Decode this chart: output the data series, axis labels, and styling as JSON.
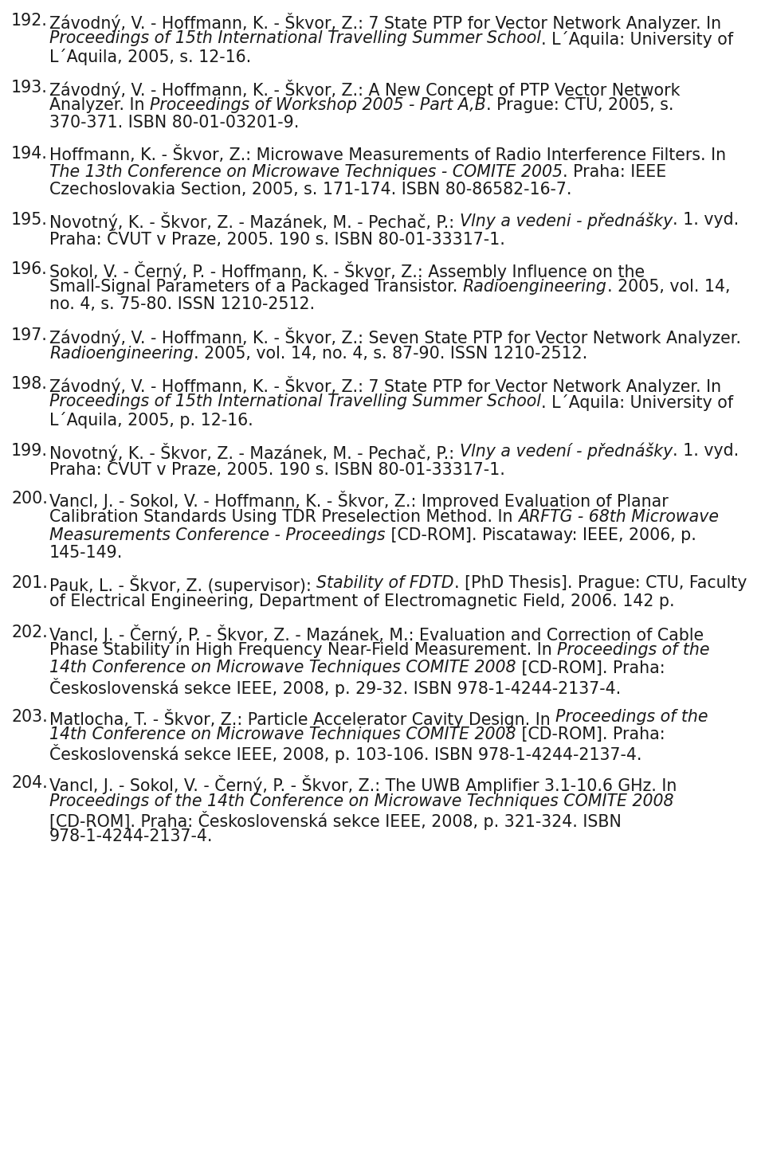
{
  "background_color": "#ffffff",
  "text_color": "#1a1a1a",
  "entries": [
    {
      "number": "192.",
      "segments": [
        {
          "text": "Závodný, V. - Hoffmann, K. - Škvor, Z.: 7 State PTP for Vector Network Analyzer. In ",
          "style": "normal"
        },
        {
          "text": "Proceedings of 15th International Travelling Summer School",
          "style": "italic"
        },
        {
          "text": ". L´Aquila: University of L´Aquila, 2005, s. 12-16.",
          "style": "normal"
        }
      ]
    },
    {
      "number": "193.",
      "segments": [
        {
          "text": "Závodný, V. - Hoffmann, K. - Škvor, Z.: A New Concept of PTP Vector Network Analyzer. In ",
          "style": "normal"
        },
        {
          "text": "Proceedings of Workshop 2005 - Part A,B",
          "style": "italic"
        },
        {
          "text": ". Prague: CTU, 2005, s. 370-371. ISBN 80-01-03201-9.",
          "style": "normal"
        }
      ]
    },
    {
      "number": "194.",
      "segments": [
        {
          "text": "Hoffmann, K. - Škvor, Z.: Microwave Measurements of Radio Interference Filters. In ",
          "style": "normal"
        },
        {
          "text": "The 13th Conference on Microwave Techniques - COMITE 2005",
          "style": "italic"
        },
        {
          "text": ". Praha: IEEE Czechoslovakia Section, 2005, s. 171-174. ISBN 80-86582-16-7.",
          "style": "normal"
        }
      ]
    },
    {
      "number": "195.",
      "segments": [
        {
          "text": "Novotný, K. - Škvor, Z. - Mazánek, M. - Pechač, P.: ",
          "style": "normal"
        },
        {
          "text": "Vlny a vedeni - přednášky",
          "style": "italic"
        },
        {
          "text": ". 1. vyd. Praha: ČVUT v Praze, 2005. 190 s. ISBN 80-01-33317-1.",
          "style": "normal"
        }
      ]
    },
    {
      "number": "196.",
      "segments": [
        {
          "text": "Sokol, V. - Černý, P. - Hoffmann, K. - Škvor, Z.: Assembly Influence on the Small-Signal Parameters of a Packaged Transistor. ",
          "style": "normal"
        },
        {
          "text": "Radioengineering",
          "style": "italic"
        },
        {
          "text": ". 2005, vol. 14, no. 4, s. 75-80. ISSN 1210-2512.",
          "style": "normal"
        }
      ]
    },
    {
      "number": "197.",
      "segments": [
        {
          "text": "Závodný, V. - Hoffmann, K. - Škvor, Z.: Seven State PTP for Vector Network Analyzer. ",
          "style": "normal"
        },
        {
          "text": "Radioengineering",
          "style": "italic"
        },
        {
          "text": ". 2005, vol. 14, no. 4, s. 87-90. ISSN 1210-2512.",
          "style": "normal"
        }
      ]
    },
    {
      "number": "198.",
      "segments": [
        {
          "text": "Závodný, V. - Hoffmann, K. - Škvor, Z.: 7 State PTP for Vector Network Analyzer. In ",
          "style": "normal"
        },
        {
          "text": "Proceedings of 15th International Travelling Summer School",
          "style": "italic"
        },
        {
          "text": ". L´Aquila: University of L´Aquila, 2005, p. 12-16.",
          "style": "normal"
        }
      ]
    },
    {
      "number": "199.",
      "segments": [
        {
          "text": "Novotný, K. - Škvor, Z. - Mazánek, M. - Pechač, P.: ",
          "style": "normal"
        },
        {
          "text": "Vlny a vedení - přednášky",
          "style": "italic"
        },
        {
          "text": ". 1. vyd. Praha: ČVUT v Praze, 2005. 190 s. ISBN 80-01-33317-1.",
          "style": "normal"
        }
      ]
    },
    {
      "number": "200.",
      "segments": [
        {
          "text": "Vancl, J. - Sokol, V. - Hoffmann, K. - Škvor, Z.: Improved Evaluation of Planar Calibration Standards Using TDR Preselection Method. In ",
          "style": "normal"
        },
        {
          "text": "ARFTG - 68th Microwave Measurements Conference - Proceedings",
          "style": "italic"
        },
        {
          "text": " [CD-ROM]. Piscataway: IEEE, 2006, p. 145-149.",
          "style": "normal"
        }
      ]
    },
    {
      "number": "201.",
      "segments": [
        {
          "text": "Pauk, L. - Škvor, Z. (supervisor): ",
          "style": "normal"
        },
        {
          "text": "Stability of FDTD",
          "style": "italic"
        },
        {
          "text": ". [PhD Thesis]. Prague: CTU, Faculty of Electrical Engineering, Department of Electromagnetic Field, 2006. 142 p.",
          "style": "normal"
        }
      ]
    },
    {
      "number": "202.",
      "segments": [
        {
          "text": "Vancl, J. - Černý, P. - Škvor, Z. - Mazánek, M.: Evaluation and Correction of Cable Phase Stability in High Frequency Near-Field Measurement. In ",
          "style": "normal"
        },
        {
          "text": "Proceedings of the 14th Conference on Microwave Techniques COMITE 2008",
          "style": "italic"
        },
        {
          "text": " [CD-ROM]. Praha: Československá sekce IEEE, 2008, p. 29-32. ISBN 978-1-4244-2137-4.",
          "style": "normal"
        }
      ]
    },
    {
      "number": "203.",
      "segments": [
        {
          "text": "Matlocha, T. - Škvor, Z.: Particle Accelerator Cavity Design. In ",
          "style": "normal"
        },
        {
          "text": "Proceedings of the 14th Conference on Microwave Techniques COMITE 2008",
          "style": "italic"
        },
        {
          "text": " [CD-ROM]. Praha: Československá sekce IEEE, 2008, p. 103-106. ISBN 978-1-4244-2137-4.",
          "style": "normal"
        }
      ]
    },
    {
      "number": "204.",
      "segments": [
        {
          "text": "Vancl, J. - Sokol, V. - Černý, P. - Škvor, Z.: The UWB Amplifier 3.1-10.6 GHz. In ",
          "style": "normal"
        },
        {
          "text": "Proceedings of the 14th Conference on Microwave Techniques COMITE 2008",
          "style": "italic"
        },
        {
          "text": " [CD-ROM]. Praha: Československá sekce IEEE, 2008, p. 321-324. ISBN 978-1-4244-2137-4.",
          "style": "normal"
        }
      ]
    }
  ]
}
